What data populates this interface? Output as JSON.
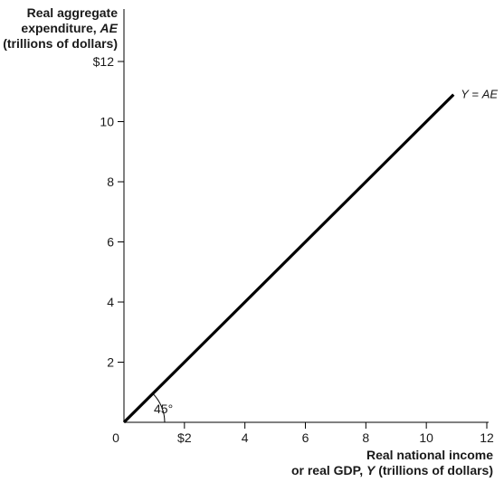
{
  "chart_data": {
    "type": "line",
    "ylabel": "Real aggregate expenditure, AE (trillions of dollars)",
    "ylabel_lines": [
      {
        "plain": "Real aggregate",
        "italic": ""
      },
      {
        "plain": "expenditure, ",
        "italic": "AE"
      },
      {
        "plain": "(trillions of dollars)",
        "italic": ""
      }
    ],
    "xlabel": "Real national income or real GDP, Y (trillions of dollars)",
    "xlabel_lines": [
      {
        "pre": "Real national income",
        "italic": "",
        "post": ""
      },
      {
        "pre": "or real GDP, ",
        "italic": "Y",
        "post": " (trillions of dollars)"
      }
    ],
    "xlim": [
      0,
      12
    ],
    "ylim": [
      0,
      12
    ],
    "x_ticks": [
      {
        "value": 2,
        "label": "$2"
      },
      {
        "value": 4,
        "label": "4"
      },
      {
        "value": 6,
        "label": "6"
      },
      {
        "value": 8,
        "label": "8"
      },
      {
        "value": 10,
        "label": "10"
      },
      {
        "value": 12,
        "label": "12"
      }
    ],
    "y_ticks": [
      {
        "value": 2,
        "label": "2"
      },
      {
        "value": 4,
        "label": "4"
      },
      {
        "value": 6,
        "label": "6"
      },
      {
        "value": 8,
        "label": "8"
      },
      {
        "value": 10,
        "label": "10"
      },
      {
        "value": 12,
        "label": "$12"
      }
    ],
    "origin_label": "0",
    "series": [
      {
        "name": "Y = AE",
        "name_italic_parts": [
          "Y",
          " = ",
          "AE"
        ],
        "x": [
          0,
          10.9
        ],
        "y": [
          0,
          10.9
        ]
      }
    ],
    "annotations": [
      {
        "text": "45°",
        "angle_degrees": 45
      }
    ],
    "grid": false,
    "colors": {
      "line": "#000000",
      "text": "#1a1a1a"
    }
  }
}
